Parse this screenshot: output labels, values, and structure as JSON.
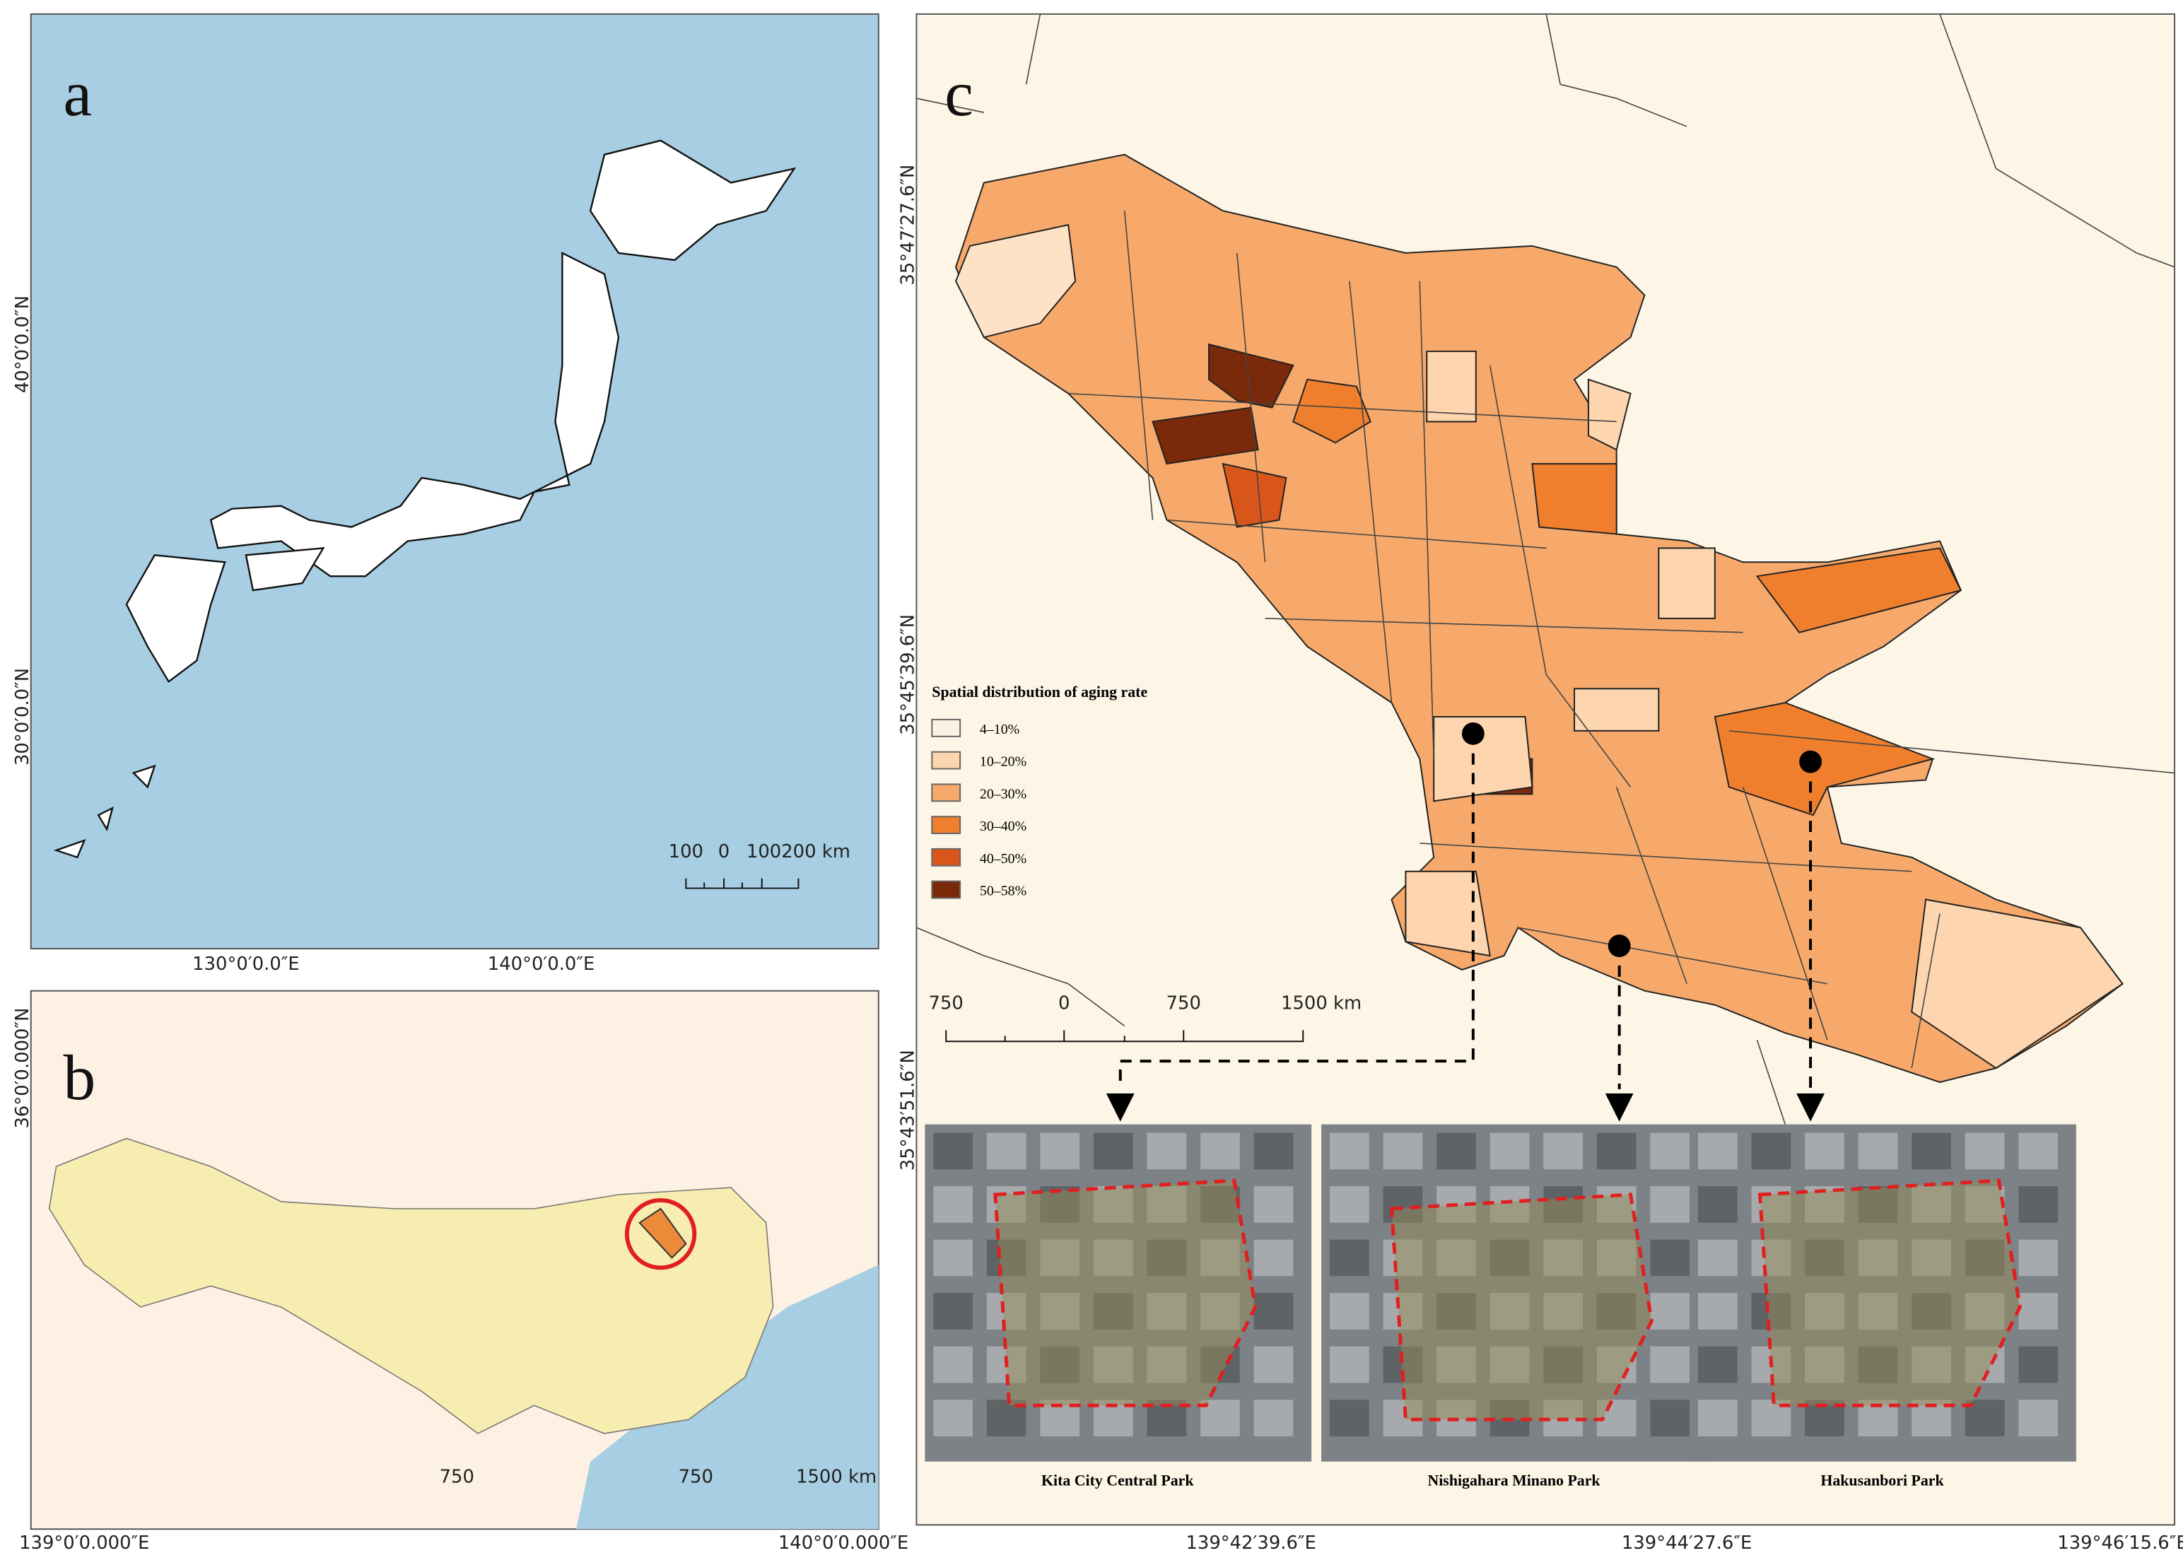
{
  "panel_a": {
    "label": "a",
    "lat_labels": [
      "40°0′0.0″N",
      "30°0′0.0″N"
    ],
    "lon_labels": [
      "130°0′0.0″E",
      "140°0′0.0″E"
    ],
    "scale_labels": [
      "100",
      "0",
      "100200 km"
    ]
  },
  "panel_b": {
    "label": "b",
    "lat_labels": [
      "36°0′0.000″N"
    ],
    "lon_labels": [
      "139°0′0.000″E",
      "140°0′0.000″E"
    ],
    "scale_labels": [
      "750",
      "750",
      "1500 km"
    ]
  },
  "panel_c": {
    "label": "c",
    "lat_labels": [
      "35°47′27.6″N",
      "35°45′39.6″N",
      "35°43′51.6″N"
    ],
    "lon_labels": [
      "139°42′39.6″E",
      "139°44′27.6″E",
      "139°46′15.6″E"
    ],
    "scale_labels": [
      "750",
      "0",
      "750",
      "1500 km"
    ],
    "legend": {
      "title": "Spatial distribution of aging rate",
      "items": [
        "4–10%",
        "10–20%",
        "20–30%",
        "30–40%",
        "40–50%",
        "50–58%"
      ]
    },
    "parks": [
      "Kita City Central Park",
      "Nishigahara Minano Park",
      "Hakusanbori Park"
    ]
  }
}
